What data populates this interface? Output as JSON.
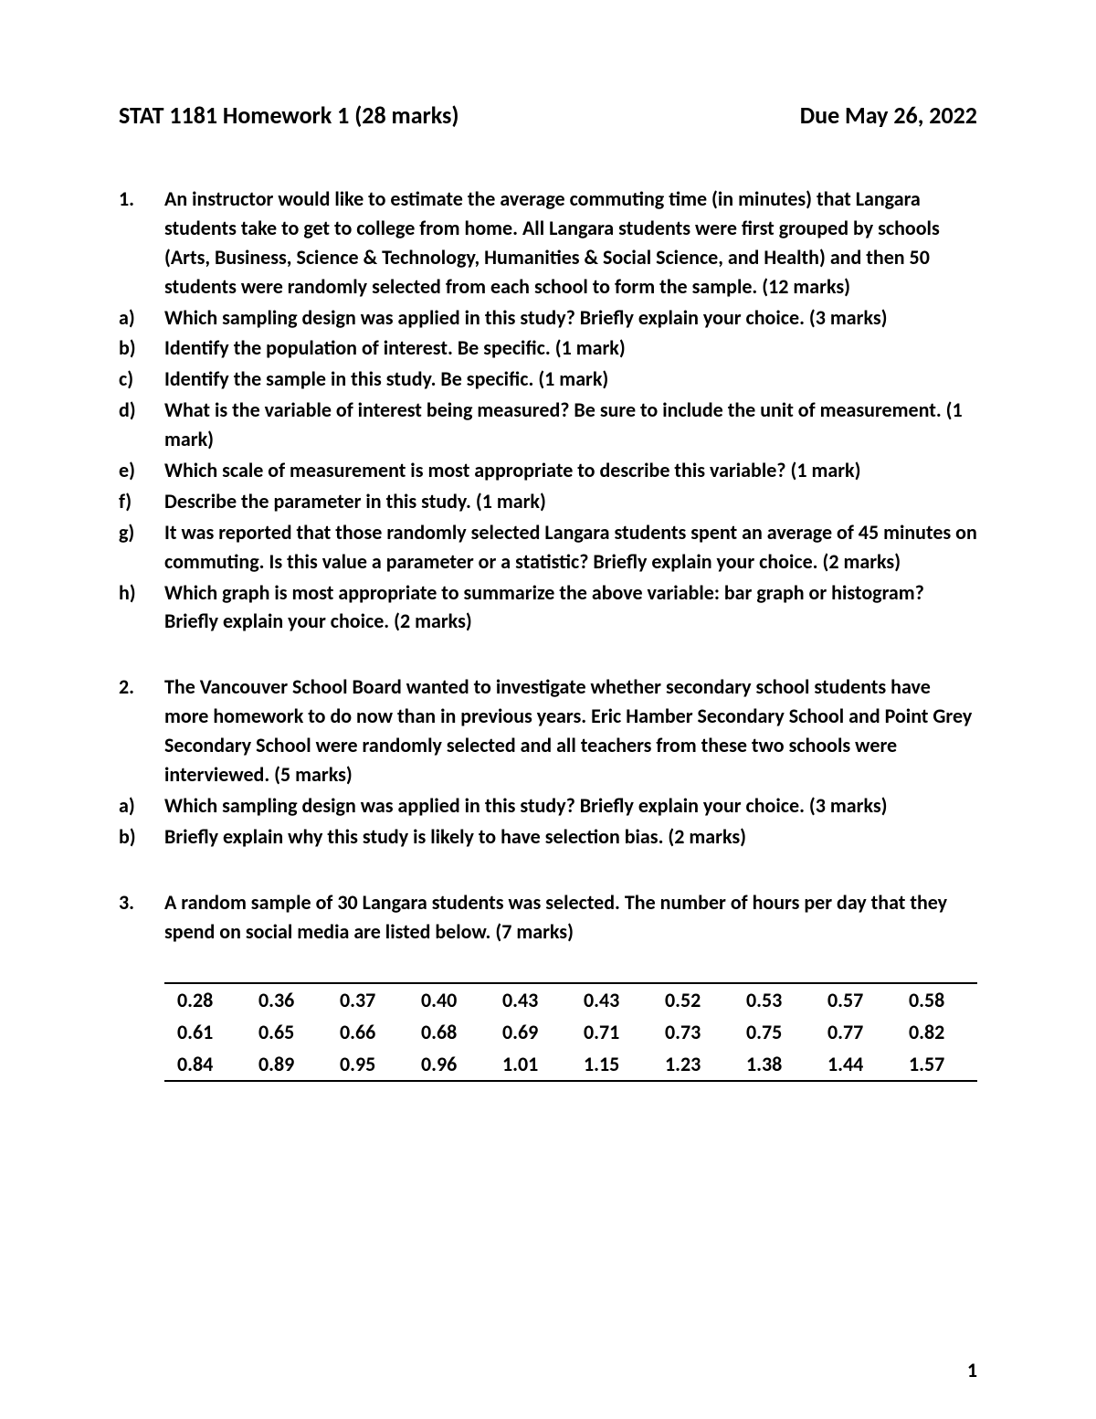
{
  "header": {
    "title_left": "STAT 1181 Homework 1 (28 marks)",
    "title_right": "Due May 26, 2022"
  },
  "questions": [
    {
      "label": "1.",
      "text": "An instructor would like to estimate the average commuting time (in minutes) that Langara students take to get to college from home.  All Langara students were first grouped by schools (Arts, Business, Science & Technology, Humanities & Social Science, and Health) and then 50 students were randomly selected from each school to form the sample.  (12 marks)",
      "subs": [
        {
          "label": "a)",
          "text": "Which sampling design was applied in this study?  Briefly explain your choice.  (3 marks)"
        },
        {
          "label": "b)",
          "text": "Identify the population of interest.  Be specific.  (1 mark)"
        },
        {
          "label": "c)",
          "text": "Identify the sample in this study.  Be specific.  (1 mark)"
        },
        {
          "label": "d)",
          "text": "What is the variable of interest being measured?  Be sure to include the unit of measurement.  (1 mark)"
        },
        {
          "label": "e)",
          "text": "Which scale of measurement is most appropriate to describe this variable?  (1 mark)"
        },
        {
          "label": "f)",
          "text": "Describe the parameter in this study.  (1 mark)"
        },
        {
          "label": "g)",
          "text": "It was reported that those randomly selected Langara students spent an average of 45 minutes on commuting.  Is this value a parameter or a statistic?  Briefly explain your choice.  (2 marks)"
        },
        {
          "label": "h)",
          "text": "Which graph is most appropriate to summarize the above variable:  bar graph or histogram?  Briefly explain your choice.  (2 marks)"
        }
      ]
    },
    {
      "label": "2.",
      "text": "The Vancouver School Board wanted to investigate whether secondary school students have more homework to do now than in previous years.  Eric Hamber Secondary School and Point Grey Secondary School were randomly selected and all teachers from these two schools were interviewed.  (5 marks)",
      "subs": [
        {
          "label": "a)",
          "text": "Which sampling design was applied in this study?  Briefly explain your choice.  (3 marks)"
        },
        {
          "label": "b)",
          "text": "Briefly explain why this study is likely to have selection bias.  (2 marks)"
        }
      ]
    },
    {
      "label": "3.",
      "text": "A random sample of 30 Langara students was selected.  The number of hours per day that they spend on social media are listed below.  (7 marks)",
      "subs": []
    }
  ],
  "data_table": {
    "rows": [
      [
        "0.28",
        "0.36",
        "0.37",
        "0.40",
        "0.43",
        "0.43",
        "0.52",
        "0.53",
        "0.57",
        "0.58"
      ],
      [
        "0.61",
        "0.65",
        "0.66",
        "0.68",
        "0.69",
        "0.71",
        "0.73",
        "0.75",
        "0.77",
        "0.82"
      ],
      [
        "0.84",
        "0.89",
        "0.95",
        "0.96",
        "1.01",
        "1.15",
        "1.23",
        "1.38",
        "1.44",
        "1.57"
      ]
    ]
  },
  "page_number": "1"
}
